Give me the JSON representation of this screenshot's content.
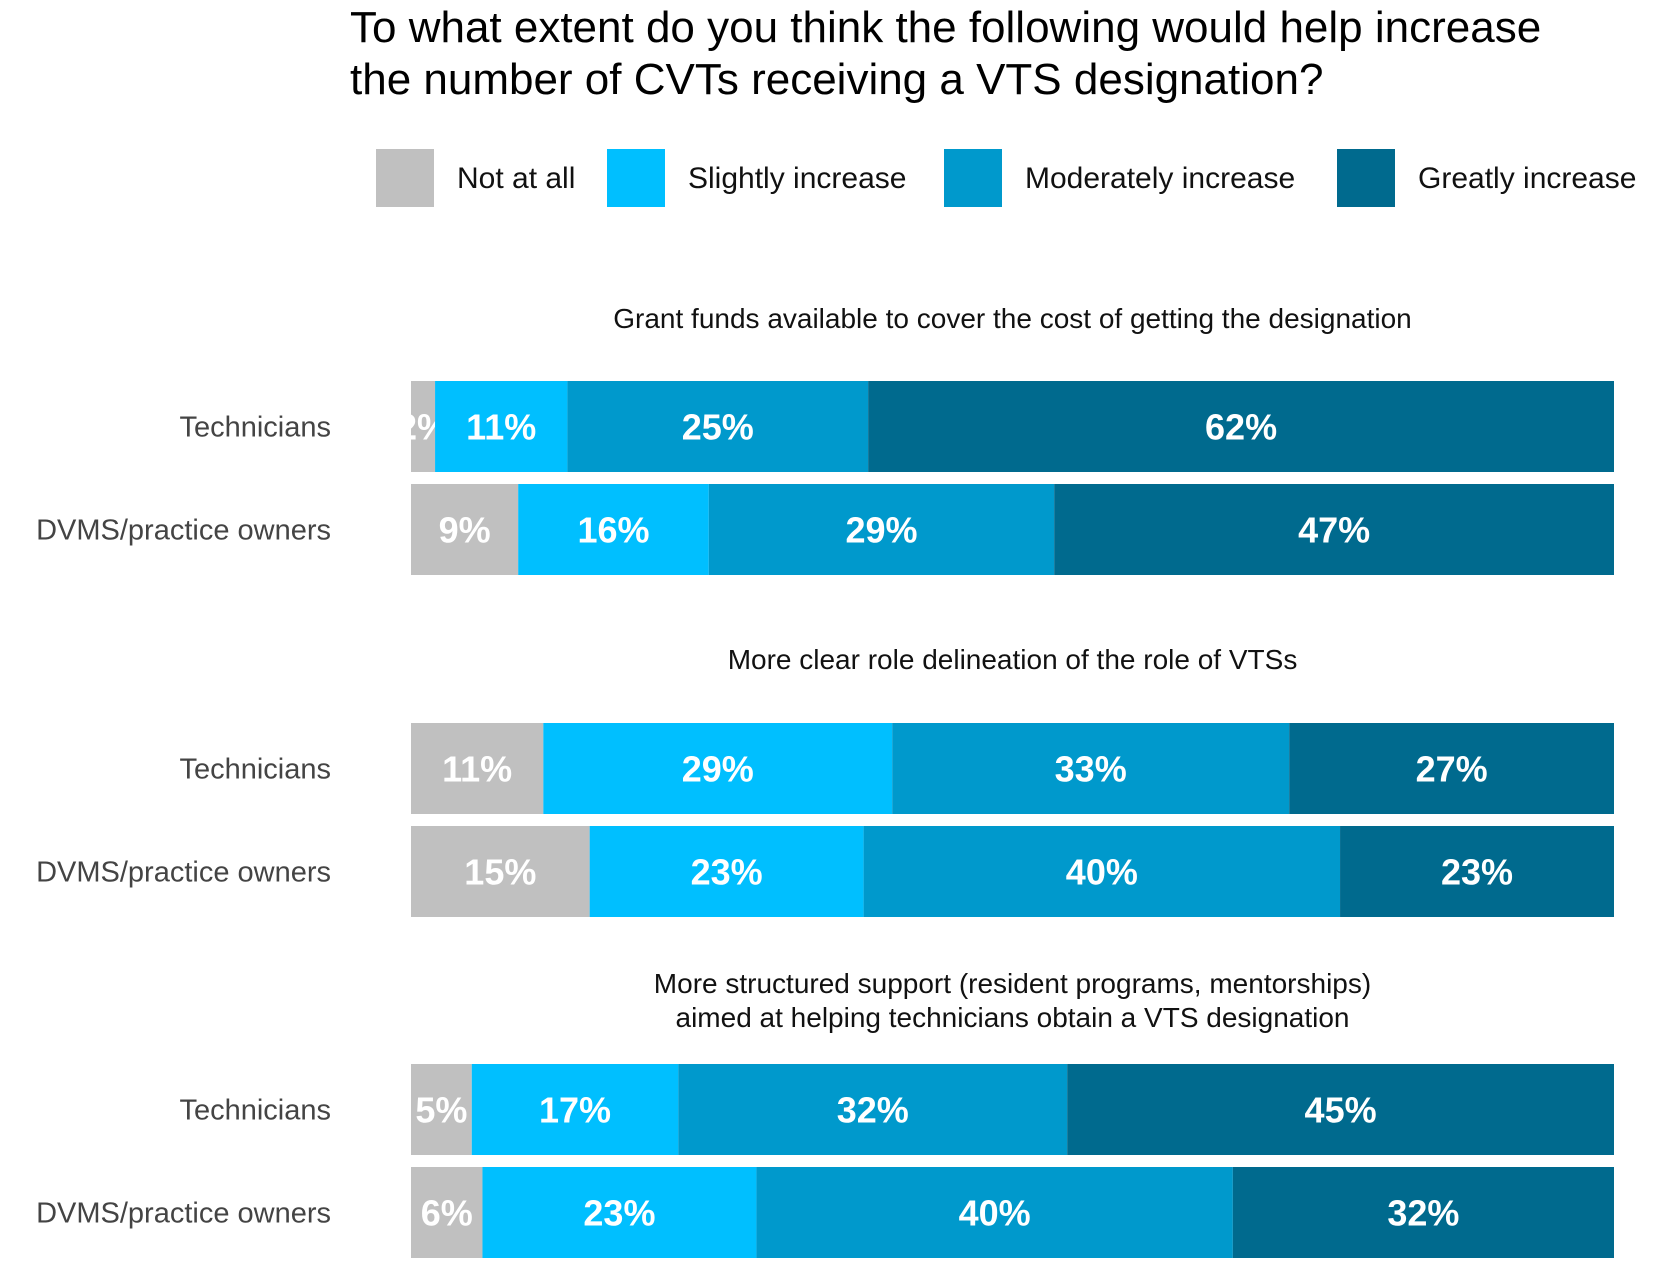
{
  "chart_data": {
    "type": "bar",
    "orientation": "horizontal",
    "stacked": true,
    "title": "To what extent do you think the following would help increase the number of CVTs receiving a VTS designation?",
    "title_lines": [
      "To what extent do you think the following would help increase",
      "the number of CVTs receiving a VTS designation?"
    ],
    "legend": [
      {
        "name": "Not at all",
        "color": "#c0c0c0"
      },
      {
        "name": "Slightly increase",
        "color": "#00bfff"
      },
      {
        "name": "Moderately increase",
        "color": "#0099cc"
      },
      {
        "name": "Greatly increase",
        "color": "#006a8e"
      }
    ],
    "legend_position": "top",
    "xlim": [
      0,
      100
    ],
    "unit": "%",
    "panels": [
      {
        "title_lines": [
          "Grant funds available to cover the cost of getting the designation"
        ],
        "rows": [
          {
            "label": "Technicians",
            "values": [
              2,
              11,
              25,
              62
            ]
          },
          {
            "label": "DVMS/practice owners",
            "values": [
              9,
              16,
              29,
              47
            ]
          }
        ]
      },
      {
        "title_lines": [
          "More clear role delineation of the role of VTSs"
        ],
        "rows": [
          {
            "label": "Technicians",
            "values": [
              11,
              29,
              33,
              27
            ]
          },
          {
            "label": "DVMS/practice owners",
            "values": [
              15,
              23,
              40,
              23
            ]
          }
        ]
      },
      {
        "title_lines": [
          "More structured support (resident programs, mentorships)",
          "aimed at helping technicians obtain a VTS designation"
        ],
        "rows": [
          {
            "label": "Technicians",
            "values": [
              5,
              17,
              32,
              45
            ]
          },
          {
            "label": "DVMS/practice owners",
            "values": [
              6,
              23,
              40,
              32
            ]
          }
        ]
      }
    ]
  }
}
